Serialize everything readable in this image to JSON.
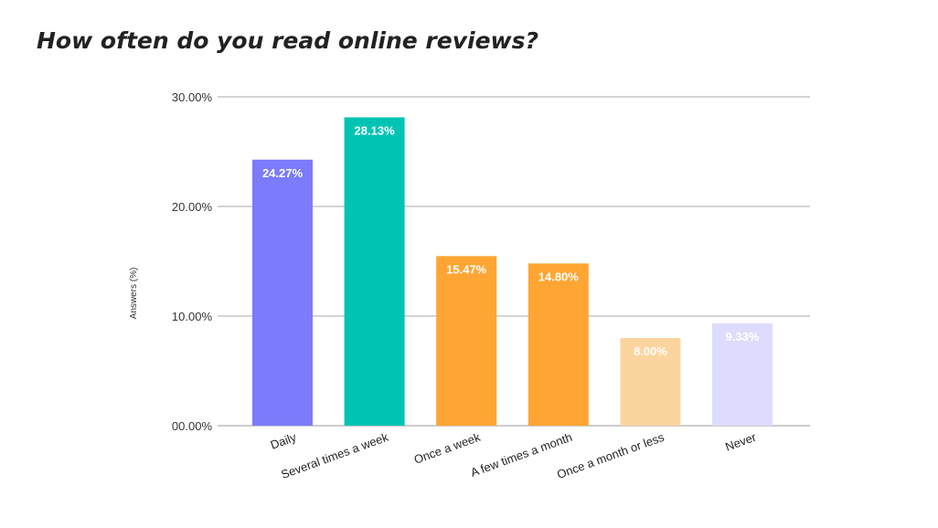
{
  "chart_data": {
    "type": "bar",
    "title": "How often do you read online reviews?",
    "xlabel": "",
    "ylabel": "Answers (%)",
    "ylim": [
      0,
      30
    ],
    "yticks": [
      0,
      10,
      20,
      30
    ],
    "ytick_labels": [
      "00.00%",
      "10.00%",
      "20.00%",
      "30.00%"
    ],
    "grid": true,
    "categories": [
      "Daily",
      "Several times a week",
      "Once a week",
      "A few times a month",
      "Once a month or less",
      "Never"
    ],
    "values": [
      24.27,
      28.13,
      15.47,
      14.8,
      8.0,
      9.33
    ],
    "value_labels": [
      "24.27%",
      "28.13%",
      "15.47%",
      "14.80%",
      "8.00%",
      "9.33%"
    ],
    "bar_colors": [
      "#7b7bfb",
      "#00c4b3",
      "#ffa533",
      "#ffa533",
      "#fcd49e",
      "#dedcfc"
    ],
    "gridline_color": "#aaaaaa",
    "value_label_color": "#ffffff"
  }
}
